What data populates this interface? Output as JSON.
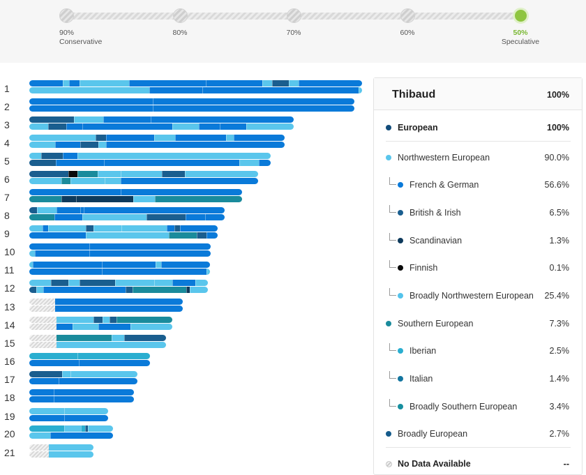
{
  "colors": {
    "european": "#124c7a",
    "nw_european": "#5ac6ec",
    "french_german": "#0a7ad9",
    "british_irish": "#1a5e8f",
    "scandinavian": "#0e3a5c",
    "finnish": "#0a0a0a",
    "broadly_nw": "#54c3eb",
    "southern": "#1a8b9c",
    "iberian": "#2aaed0",
    "italian": "#13759f",
    "broadly_southern": "#178f9f",
    "broadly_european": "#155b8b",
    "no_data": "hatched-gray",
    "speculative_green": "#8ec540"
  },
  "confidence_slider": {
    "stops": [
      {
        "label": "90%",
        "sub": "Conservative",
        "active": false
      },
      {
        "label": "80%",
        "sub": "",
        "active": false
      },
      {
        "label": "70%",
        "sub": "",
        "active": false
      },
      {
        "label": "60%",
        "sub": "",
        "active": false
      },
      {
        "label": "50%",
        "sub": "Speculative",
        "active": true
      }
    ]
  },
  "card": {
    "name": "Thibaud",
    "total": "100%",
    "rows": [
      {
        "label": "European",
        "pct": "100%",
        "level": 0,
        "bold": true,
        "color": "#124c7a"
      },
      {
        "label": "Northwestern European",
        "pct": "90.0%",
        "level": 0,
        "bold": false,
        "color": "#5ac6ec"
      },
      {
        "label": "French & German",
        "pct": "56.6%",
        "level": 1,
        "bold": false,
        "color": "#0a7ad9"
      },
      {
        "label": "British & Irish",
        "pct": "6.5%",
        "level": 1,
        "bold": false,
        "color": "#1a5e8f"
      },
      {
        "label": "Scandinavian",
        "pct": "1.3%",
        "level": 1,
        "bold": false,
        "color": "#0e3a5c"
      },
      {
        "label": "Finnish",
        "pct": "0.1%",
        "level": 1,
        "bold": false,
        "color": "#0a0a0a"
      },
      {
        "label": "Broadly Northwestern European",
        "pct": "25.4%",
        "level": 1,
        "bold": false,
        "color": "#54c3eb"
      },
      {
        "label": "Southern European",
        "pct": "7.3%",
        "level": 0,
        "bold": false,
        "color": "#1a8b9c"
      },
      {
        "label": "Iberian",
        "pct": "2.5%",
        "level": 1,
        "bold": false,
        "color": "#2aaed0"
      },
      {
        "label": "Italian",
        "pct": "1.4%",
        "level": 1,
        "bold": false,
        "color": "#13759f"
      },
      {
        "label": "Broadly Southern European",
        "pct": "3.4%",
        "level": 1,
        "bold": false,
        "color": "#178f9f"
      },
      {
        "label": "Broadly European",
        "pct": "2.7%",
        "level": 0,
        "bold": false,
        "color": "#155b8b"
      },
      {
        "label": "No Data Available",
        "pct": "--",
        "level": 0,
        "bold": true,
        "color": "hatched-gray"
      }
    ]
  },
  "chromosomes": [
    {
      "label": "1"
    },
    {
      "label": "2"
    },
    {
      "label": "3"
    },
    {
      "label": "4"
    },
    {
      "label": "5"
    },
    {
      "label": "6"
    },
    {
      "label": "7"
    },
    {
      "label": "8"
    },
    {
      "label": "9"
    },
    {
      "label": "10"
    },
    {
      "label": "11"
    },
    {
      "label": "12"
    },
    {
      "label": "13"
    },
    {
      "label": "14"
    },
    {
      "label": "15"
    },
    {
      "label": "16"
    },
    {
      "label": "17"
    },
    {
      "label": "18"
    },
    {
      "label": "19"
    },
    {
      "label": "20"
    },
    {
      "label": "21"
    }
  ]
}
